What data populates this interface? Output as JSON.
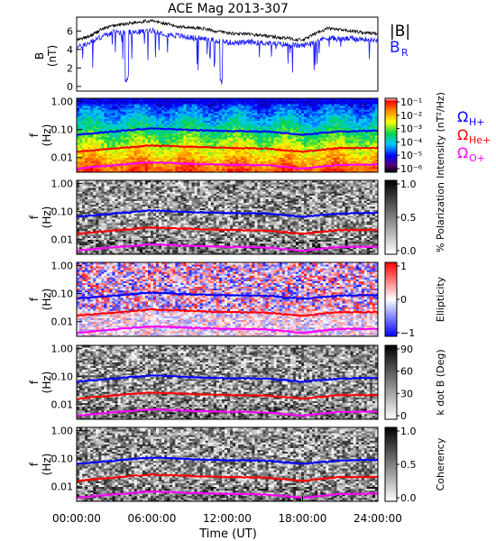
{
  "title": "ACE Mag 2013-307",
  "colors": {
    "B_total": "#000000",
    "B_R": "#1a1aff",
    "omega_H": "#0000ff",
    "omega_He": "#ff0000",
    "omega_O": "#ff00ff"
  },
  "x_axis": {
    "label": "Time (UT)",
    "ticks": [
      "00:00:00",
      "06:00:00",
      "12:00:00",
      "18:00:00",
      "24:00:00"
    ],
    "range_hours": [
      0,
      24
    ]
  },
  "freq_ticks": [
    "1.00",
    "0.10",
    "0.01"
  ],
  "freq_ylabel": [
    "f",
    "(Hz)"
  ],
  "gyro_legend": [
    {
      "symbol": "Ω",
      "sub": "H+",
      "color": "#0000ff"
    },
    {
      "symbol": "Ω",
      "sub": "He+",
      "color": "#ff0000"
    },
    {
      "symbol": "Ω",
      "sub": "O+",
      "color": "#ff00ff"
    }
  ],
  "panels": [
    {
      "id": "intensity",
      "colormap": "rainbow",
      "cbar_label": "Intensity (nT²/Hz)",
      "cbar_ticks": [
        "10⁻¹",
        "10⁻²",
        "10⁻³",
        "10⁻⁴",
        "10⁻⁵",
        "10⁻⁶"
      ]
    },
    {
      "id": "polarization",
      "colormap": "gray",
      "cbar_label": "% Polarization",
      "cbar_ticks": [
        "1.0",
        "0.5",
        "0.0"
      ]
    },
    {
      "id": "ellipticity",
      "colormap": "bwr",
      "cbar_label": "Ellipticity",
      "cbar_ticks": [
        "1",
        "0",
        "−1"
      ]
    },
    {
      "id": "kdotb",
      "colormap": "gray",
      "cbar_label": "k dot B (Deg)",
      "cbar_ticks": [
        "90",
        "60",
        "30",
        "0"
      ]
    },
    {
      "id": "coherency",
      "colormap": "gray",
      "cbar_label": "Coherency",
      "cbar_ticks": [
        "1.0",
        "0.5",
        "0.0"
      ]
    }
  ],
  "chart_data": [
    {
      "type": "line",
      "title": "ACE Mag 2013-307",
      "ylabel": "B (nT)",
      "ylim": [
        -0.5,
        7.5
      ],
      "yticks": [
        0,
        2,
        4,
        6
      ],
      "x_hours": [
        0,
        1,
        2,
        3,
        4,
        5,
        6,
        7,
        8,
        9,
        10,
        11,
        12,
        13,
        14,
        15,
        16,
        17,
        18,
        19,
        20,
        21,
        22,
        23,
        24
      ],
      "series": [
        {
          "name": "|B|",
          "color": "#000000",
          "values": [
            5.0,
            5.4,
            6.2,
            6.6,
            6.8,
            7.0,
            7.1,
            6.8,
            6.5,
            6.4,
            6.3,
            6.0,
            5.8,
            5.7,
            5.6,
            5.5,
            5.3,
            5.2,
            5.0,
            5.7,
            6.3,
            6.1,
            6.0,
            5.8,
            5.7
          ]
        },
        {
          "name": "B_R",
          "color": "#1a1aff",
          "values": [
            4.2,
            4.7,
            5.4,
            5.9,
            5.8,
            5.9,
            6.1,
            5.7,
            5.5,
            5.3,
            5.2,
            5.0,
            4.8,
            4.7,
            4.8,
            4.7,
            4.6,
            4.5,
            4.4,
            4.9,
            5.3,
            5.1,
            5.2,
            5.1,
            5.0
          ]
        }
      ]
    },
    {
      "type": "line",
      "description_series": "gyrofrequency traces",
      "x_hours": [
        0,
        3,
        6,
        9,
        12,
        15,
        18,
        21,
        24
      ],
      "y_scale": "log",
      "ylim_hz": [
        0.003,
        1.3
      ],
      "series": [
        {
          "name": "Ω H+",
          "color": "#0000ff",
          "values": [
            0.065,
            0.085,
            0.11,
            0.095,
            0.088,
            0.085,
            0.065,
            0.085,
            0.09
          ]
        },
        {
          "name": "Ω He+",
          "color": "#ff0000",
          "values": [
            0.016,
            0.021,
            0.027,
            0.024,
            0.022,
            0.021,
            0.016,
            0.022,
            0.022
          ]
        },
        {
          "name": "Ω O+",
          "color": "#ff00ff",
          "values": [
            0.004,
            0.0053,
            0.0068,
            0.006,
            0.0055,
            0.0053,
            0.004,
            0.0055,
            0.0056
          ]
        }
      ]
    }
  ]
}
